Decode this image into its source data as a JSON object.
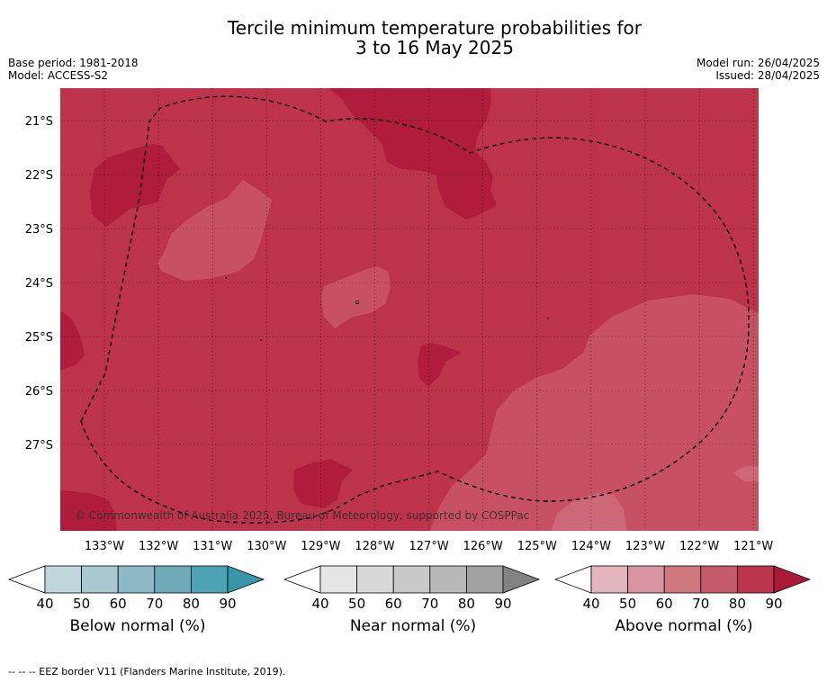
{
  "title": {
    "line1": "Tercile minimum temperature probabilities for",
    "line2": "3 to 16 May 2025"
  },
  "meta": {
    "base_period": "Base period: 1981-2018",
    "model": "Model: ACCESS-S2",
    "model_run": "Model run: 26/04/2025",
    "issued": "Issued: 28/04/2025"
  },
  "map": {
    "lat_labels": [
      "21°S",
      "22°S",
      "23°S",
      "24°S",
      "25°S",
      "26°S",
      "27°S"
    ],
    "lon_labels": [
      "133°W",
      "132°W",
      "131°W",
      "130°W",
      "129°W",
      "128°W",
      "127°W",
      "126°W",
      "125°W",
      "124°W",
      "123°W",
      "122°W",
      "121°W"
    ],
    "copyright": "© Commonwealth of Australia 2025, Bureau of Meteorology, supported by COSPPac",
    "colors": {
      "above_70_80": "#bd3349",
      "above_80_90": "#b01d3c",
      "above_60_70": "#c75162",
      "above_50_60": "#cc6878"
    }
  },
  "colorbars": [
    {
      "title": "Below normal (%)",
      "ticks": [
        "40",
        "50",
        "60",
        "70",
        "80",
        "90"
      ],
      "colors": [
        "#ffffff",
        "#bfd7dc",
        "#a8c9d0",
        "#8cb9c3",
        "#6eaab7",
        "#4da3b3",
        "#3796a8"
      ]
    },
    {
      "title": "Near normal (%)",
      "ticks": [
        "40",
        "50",
        "60",
        "70",
        "80",
        "90"
      ],
      "colors": [
        "#ffffff",
        "#e5e5e5",
        "#d8d8d8",
        "#c9c9c9",
        "#b8b8b8",
        "#a2a2a2",
        "#828282"
      ]
    },
    {
      "title": "Above normal (%)",
      "ticks": [
        "40",
        "50",
        "60",
        "70",
        "80",
        "90"
      ],
      "colors": [
        "#ffffff",
        "#e2b5bd",
        "#d9959f",
        "#cf7880",
        "#c55a6a",
        "#ba344b",
        "#aa1a38"
      ]
    }
  ],
  "footnote": "--  --  -- EEZ border V11 (Flanders Marine Institute, 2019)."
}
